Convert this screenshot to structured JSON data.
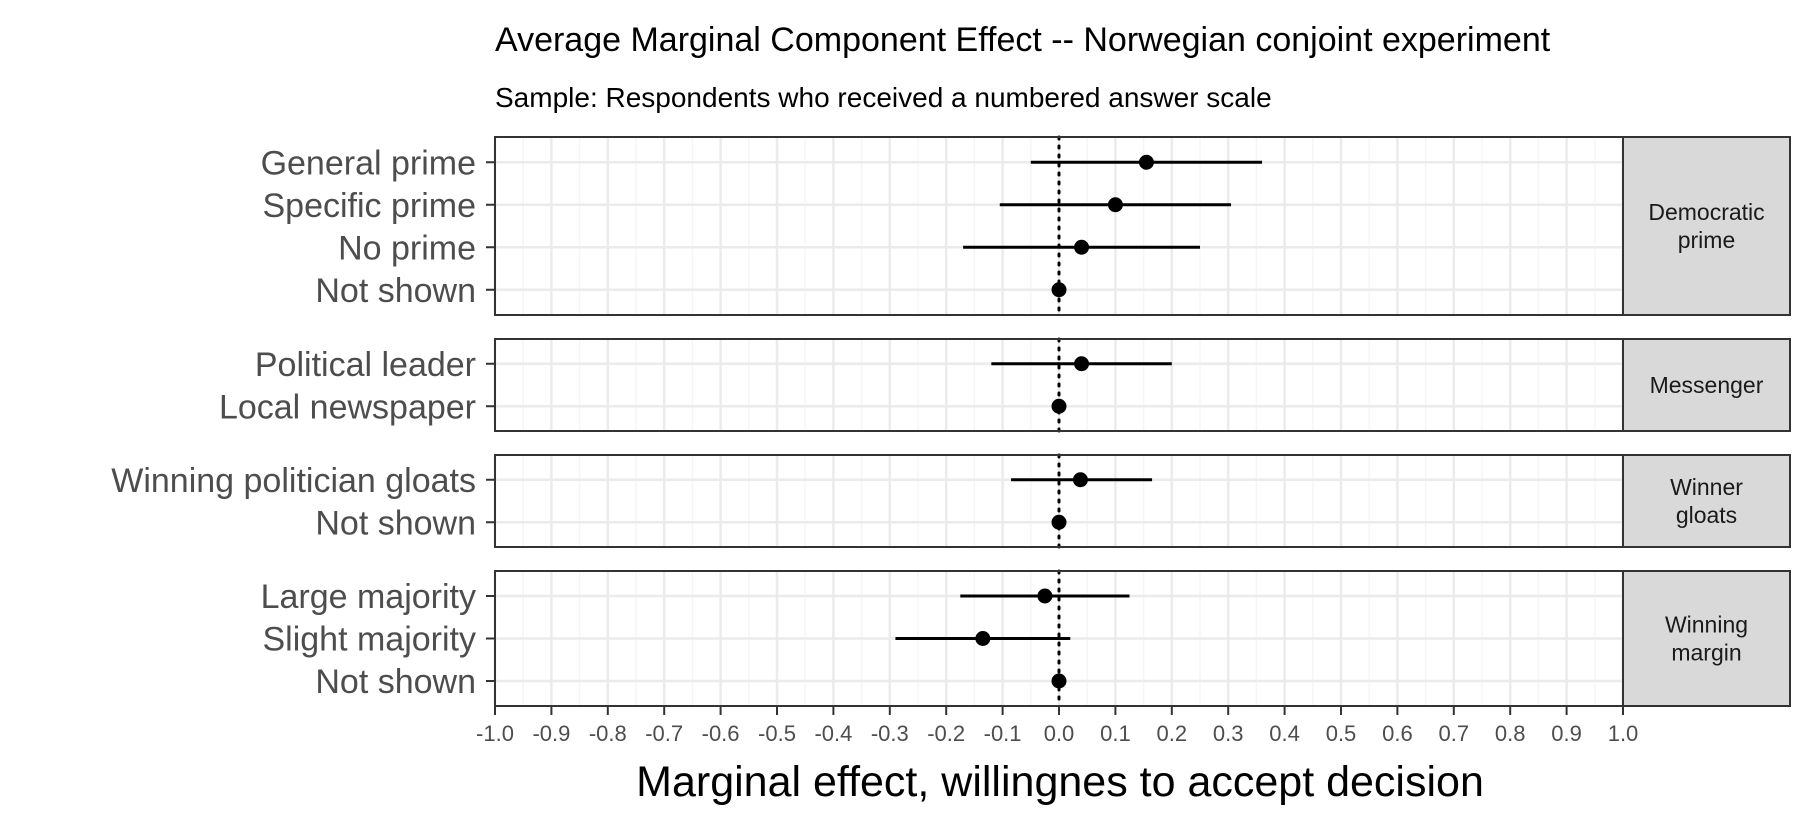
{
  "chart_data": {
    "type": "scatter",
    "subtype": "coefficient-plot-with-error-bars",
    "title": "Average Marginal Component Effect -- Norwegian conjoint experiment",
    "subtitle": "Sample: Respondents who received a numbered answer scale",
    "xlabel": "Marginal effect, willingnes to accept decision",
    "xlim": [
      -1.0,
      1.0
    ],
    "x_ticks": [
      "-1.0",
      "-0.9",
      "-0.8",
      "-0.7",
      "-0.6",
      "-0.5",
      "-0.4",
      "-0.3",
      "-0.2",
      "-0.1",
      "0.0",
      "0.1",
      "0.2",
      "0.3",
      "0.4",
      "0.5",
      "0.6",
      "0.7",
      "0.8",
      "0.9",
      "1.0"
    ],
    "reference_line": {
      "x": 0.0,
      "style": "dotted"
    },
    "grid": true,
    "panels": [
      {
        "facet_label": [
          "Democratic",
          "prime"
        ],
        "rows": [
          {
            "label": "General prime",
            "estimate": 0.155,
            "lower": -0.05,
            "upper": 0.36
          },
          {
            "label": "Specific prime",
            "estimate": 0.1,
            "lower": -0.105,
            "upper": 0.305
          },
          {
            "label": "No prime",
            "estimate": 0.04,
            "lower": -0.17,
            "upper": 0.25
          },
          {
            "label": "Not shown",
            "estimate": 0.0,
            "lower": 0.0,
            "upper": 0.0
          }
        ]
      },
      {
        "facet_label": [
          "Messenger"
        ],
        "rows": [
          {
            "label": "Political leader",
            "estimate": 0.04,
            "lower": -0.12,
            "upper": 0.2
          },
          {
            "label": "Local newspaper",
            "estimate": 0.0,
            "lower": 0.0,
            "upper": 0.0
          }
        ]
      },
      {
        "facet_label": [
          "Winner",
          "gloats"
        ],
        "rows": [
          {
            "label": "Winning politician gloats",
            "estimate": 0.038,
            "lower": -0.085,
            "upper": 0.165
          },
          {
            "label": "Not shown",
            "estimate": 0.0,
            "lower": 0.0,
            "upper": 0.0
          }
        ]
      },
      {
        "facet_label": [
          "Winning",
          "margin"
        ],
        "rows": [
          {
            "label": "Large majority",
            "estimate": -0.025,
            "lower": -0.175,
            "upper": 0.125
          },
          {
            "label": "Slight majority",
            "estimate": -0.135,
            "lower": -0.29,
            "upper": 0.02
          },
          {
            "label": "Not shown",
            "estimate": 0.0,
            "lower": 0.0,
            "upper": 0.0
          }
        ]
      }
    ]
  },
  "colors": {
    "panel_background": "#ffffff",
    "grid_major": "#ebebeb",
    "grid_minor": "#f5f5f5",
    "panel_border": "#333333",
    "strip_fill": "#d9d9d9",
    "point": "#000000",
    "label_text": "#4d4d4d"
  }
}
